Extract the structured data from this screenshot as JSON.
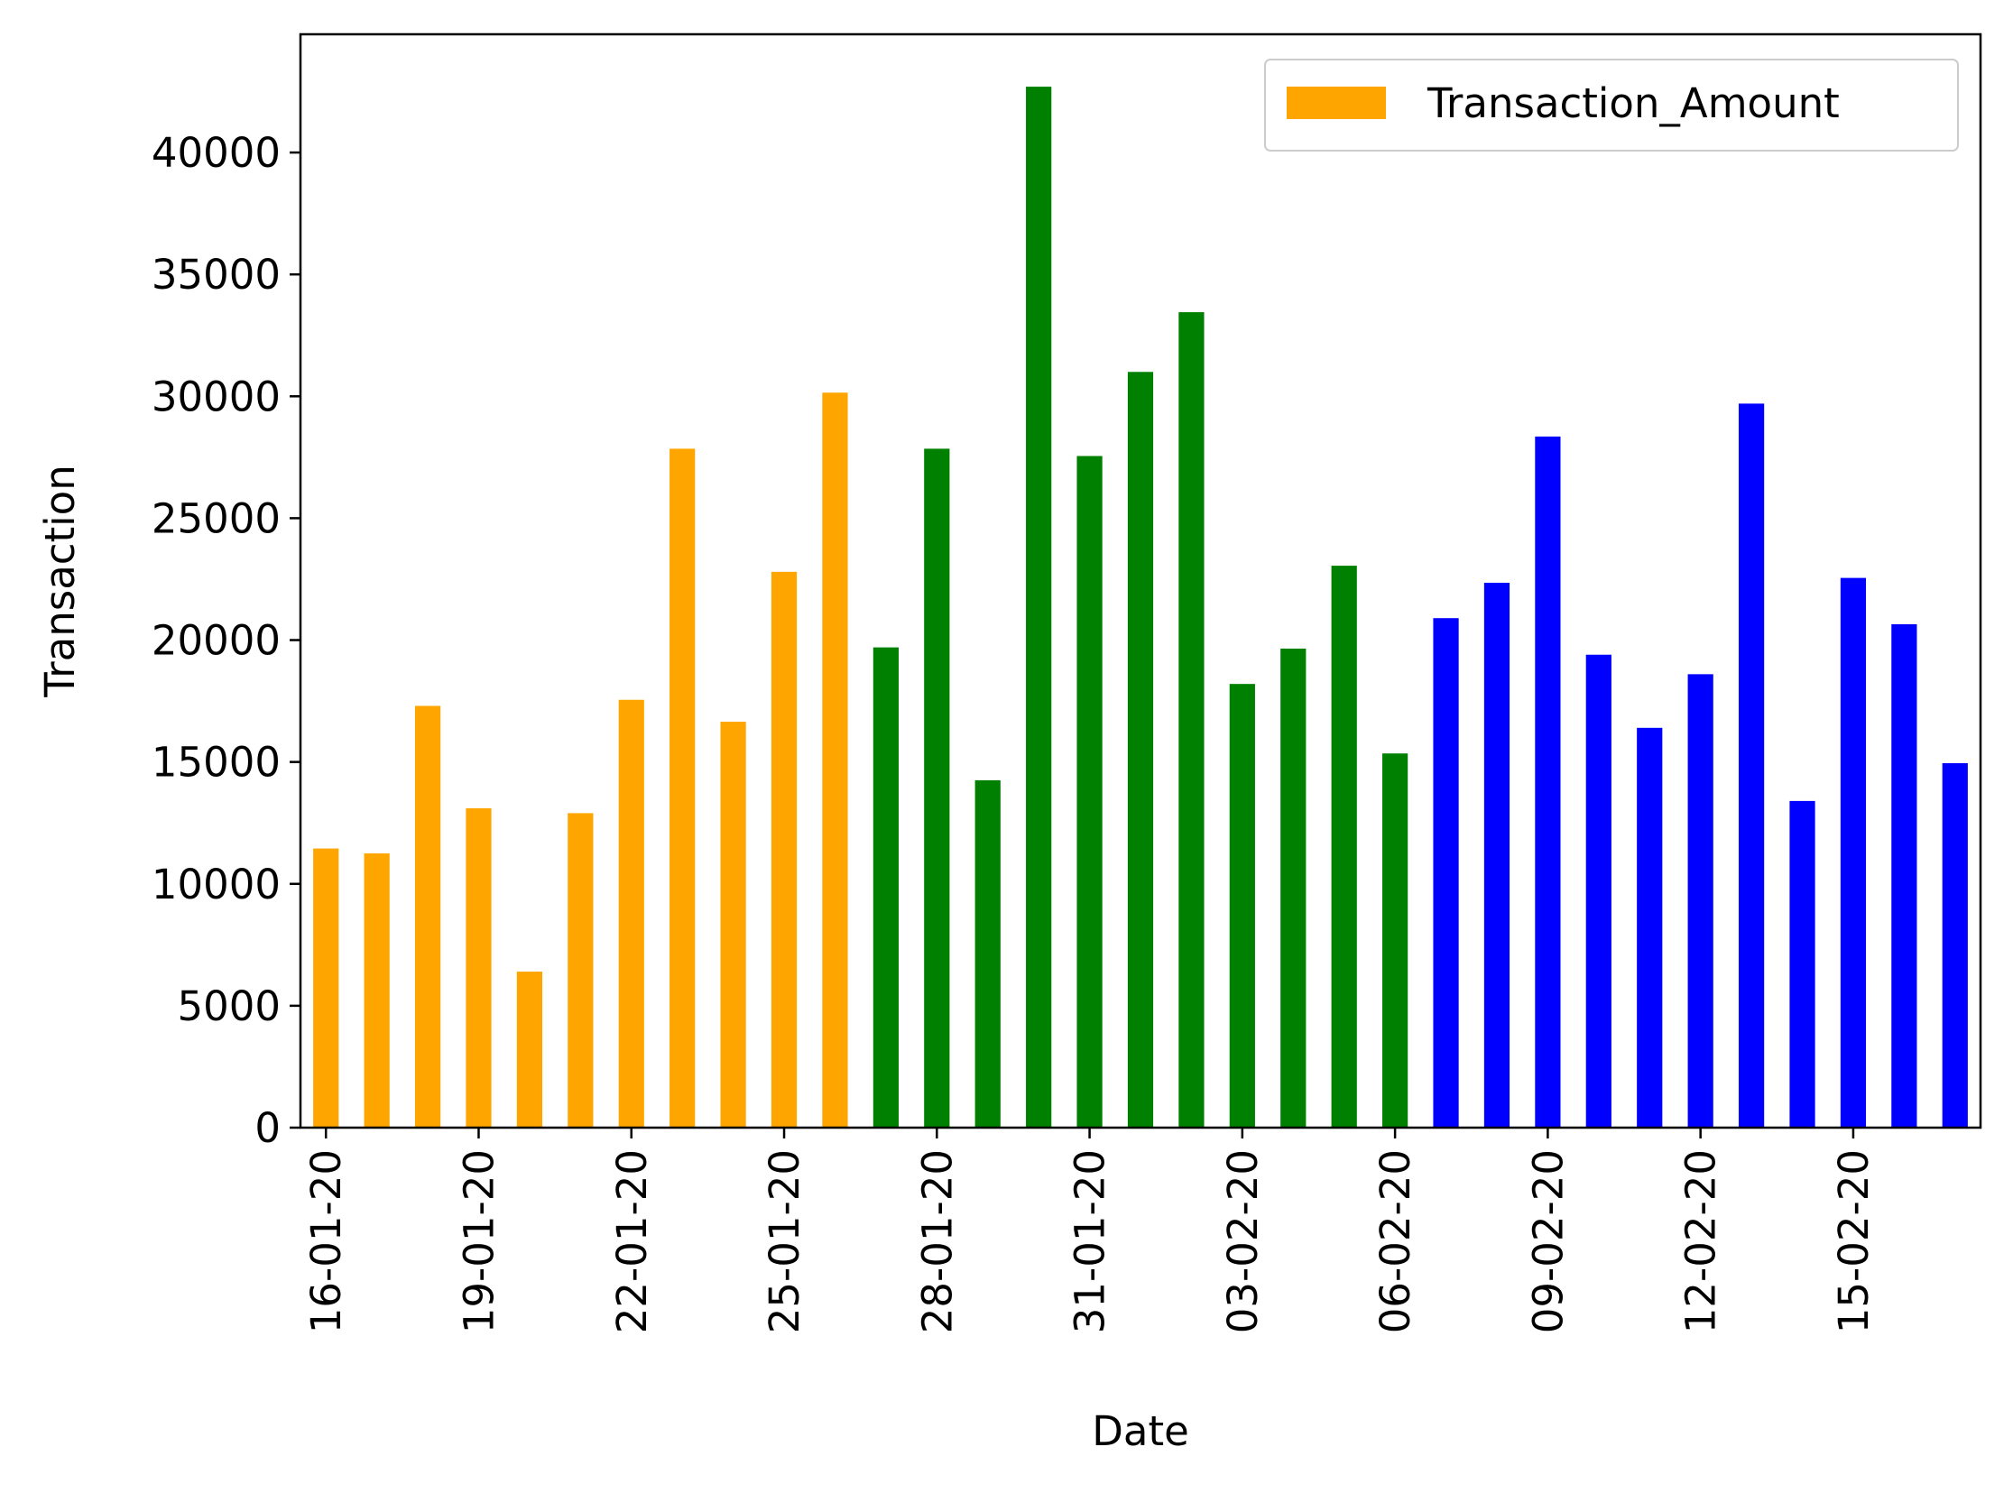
{
  "chart_data": {
    "type": "bar",
    "xlabel": "Date",
    "ylabel": "Transaction",
    "ylim": [
      0,
      44850
    ],
    "yticks": [
      0,
      5000,
      10000,
      15000,
      20000,
      25000,
      30000,
      35000,
      40000
    ],
    "ytick_labels": [
      "0",
      "5000",
      "10000",
      "15000",
      "20000",
      "25000",
      "30000",
      "35000",
      "40000"
    ],
    "grid": false,
    "legend": {
      "position": "top-right",
      "entries": [
        {
          "label": "Transaction_Amount",
          "color": "#FFA500"
        }
      ]
    },
    "series": [
      {
        "name": "Transaction_Amount"
      }
    ],
    "categories": [
      "16-01-20",
      "17-01-20",
      "18-01-20",
      "19-01-20",
      "20-01-20",
      "21-01-20",
      "22-01-20",
      "23-01-20",
      "24-01-20",
      "25-01-20",
      "26-01-20",
      "27-01-20",
      "28-01-20",
      "29-01-20",
      "30-01-20",
      "31-01-20",
      "01-02-20",
      "02-02-20",
      "03-02-20",
      "04-02-20",
      "05-02-20",
      "06-02-20",
      "07-02-20",
      "08-02-20",
      "09-02-20",
      "10-02-20",
      "11-02-20",
      "12-02-20",
      "13-02-20",
      "14-02-20",
      "15-02-20",
      "16-02-20",
      "17-02-20"
    ],
    "tick_labels_shown": [
      "16-01-20",
      "19-01-20",
      "22-01-20",
      "25-01-20",
      "28-01-20",
      "31-01-20",
      "03-02-20",
      "06-02-20",
      "09-02-20",
      "12-02-20",
      "15-02-20"
    ],
    "tick_every": 3,
    "values": [
      11450,
      11250,
      17300,
      13100,
      6400,
      12900,
      17550,
      27850,
      16650,
      22800,
      30150,
      19700,
      27850,
      14250,
      42700,
      27550,
      31000,
      33450,
      18200,
      19650,
      23050,
      15350,
      20900,
      22350,
      28350,
      19400,
      16400,
      18600,
      29700,
      13400,
      22550,
      20650,
      14950
    ],
    "bar_colors": [
      "#FFA500",
      "#FFA500",
      "#FFA500",
      "#FFA500",
      "#FFA500",
      "#FFA500",
      "#FFA500",
      "#FFA500",
      "#FFA500",
      "#FFA500",
      "#FFA500",
      "#008000",
      "#008000",
      "#008000",
      "#008000",
      "#008000",
      "#008000",
      "#008000",
      "#008000",
      "#008000",
      "#008000",
      "#008000",
      "#0000FF",
      "#0000FF",
      "#0000FF",
      "#0000FF",
      "#0000FF",
      "#0000FF",
      "#0000FF",
      "#0000FF",
      "#0000FF",
      "#0000FF",
      "#0000FF"
    ]
  }
}
